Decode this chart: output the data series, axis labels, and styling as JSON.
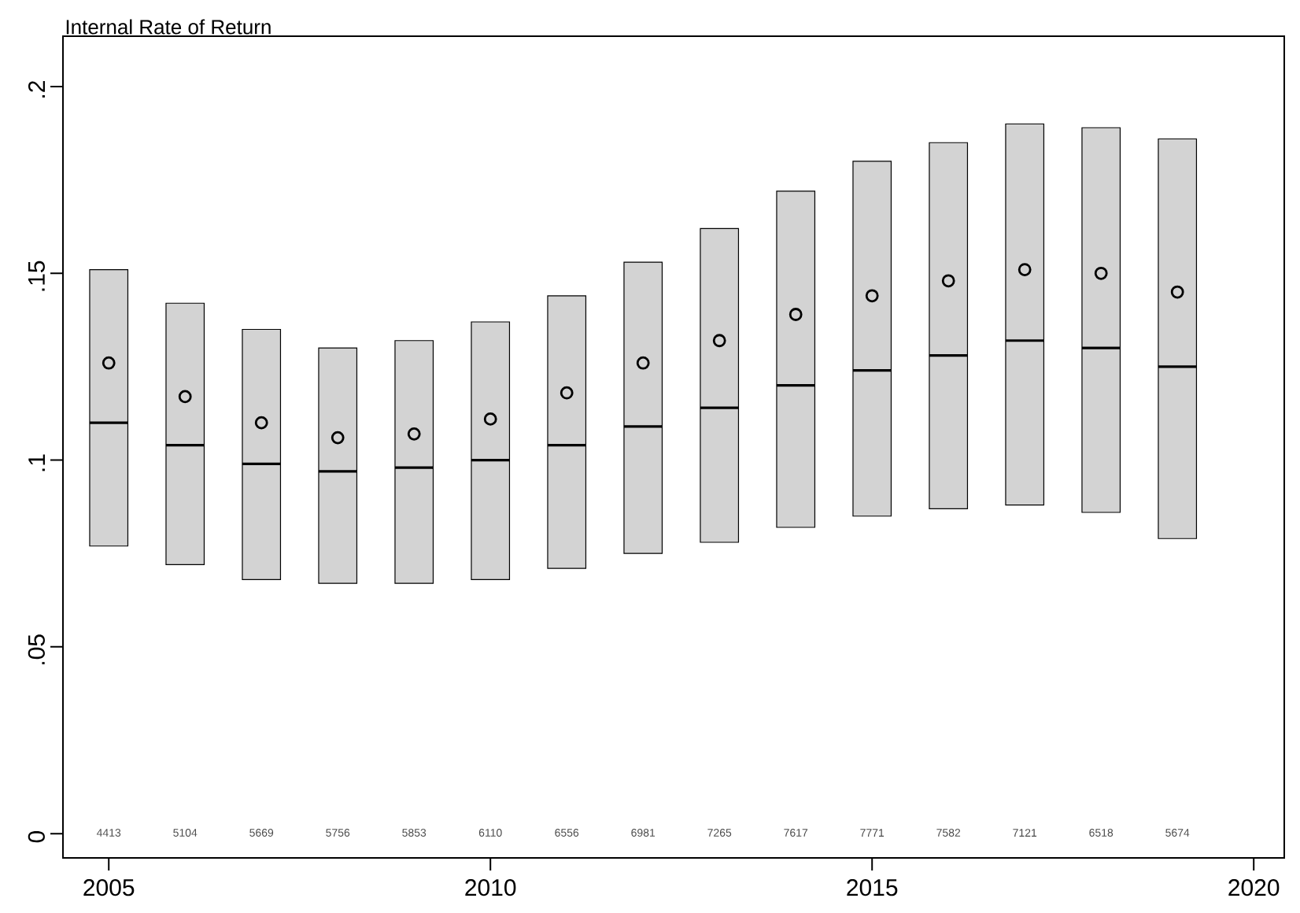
{
  "chart_data": {
    "type": "box",
    "title": "Internal Rate of Return",
    "x": [
      2005,
      2006,
      2007,
      2008,
      2009,
      2010,
      2011,
      2012,
      2013,
      2014,
      2015,
      2016,
      2017,
      2018,
      2019
    ],
    "boxes": [
      {
        "low": 0.077,
        "q1": 0.077,
        "median": 0.11,
        "q3": 0.151,
        "high": 0.151,
        "mean": 0.126
      },
      {
        "low": 0.072,
        "q1": 0.072,
        "median": 0.104,
        "q3": 0.142,
        "high": 0.142,
        "mean": 0.117
      },
      {
        "low": 0.068,
        "q1": 0.068,
        "median": 0.099,
        "q3": 0.135,
        "high": 0.135,
        "mean": 0.11
      },
      {
        "low": 0.067,
        "q1": 0.067,
        "median": 0.097,
        "q3": 0.13,
        "high": 0.13,
        "mean": 0.106
      },
      {
        "low": 0.067,
        "q1": 0.067,
        "median": 0.098,
        "q3": 0.132,
        "high": 0.132,
        "mean": 0.107
      },
      {
        "low": 0.068,
        "q1": 0.068,
        "median": 0.1,
        "q3": 0.137,
        "high": 0.137,
        "mean": 0.111
      },
      {
        "low": 0.071,
        "q1": 0.071,
        "median": 0.104,
        "q3": 0.144,
        "high": 0.144,
        "mean": 0.118
      },
      {
        "low": 0.075,
        "q1": 0.075,
        "median": 0.109,
        "q3": 0.153,
        "high": 0.153,
        "mean": 0.126
      },
      {
        "low": 0.078,
        "q1": 0.078,
        "median": 0.114,
        "q3": 0.162,
        "high": 0.162,
        "mean": 0.132
      },
      {
        "low": 0.082,
        "q1": 0.082,
        "median": 0.12,
        "q3": 0.172,
        "high": 0.172,
        "mean": 0.139
      },
      {
        "low": 0.085,
        "q1": 0.085,
        "median": 0.124,
        "q3": 0.18,
        "high": 0.18,
        "mean": 0.144
      },
      {
        "low": 0.087,
        "q1": 0.087,
        "median": 0.128,
        "q3": 0.185,
        "high": 0.185,
        "mean": 0.148
      },
      {
        "low": 0.088,
        "q1": 0.088,
        "median": 0.132,
        "q3": 0.19,
        "high": 0.19,
        "mean": 0.151
      },
      {
        "low": 0.086,
        "q1": 0.086,
        "median": 0.13,
        "q3": 0.189,
        "high": 0.189,
        "mean": 0.15
      },
      {
        "low": 0.079,
        "q1": 0.079,
        "median": 0.125,
        "q3": 0.186,
        "high": 0.186,
        "mean": 0.145
      }
    ],
    "color": "#d3d3d3",
    "xlim": [
      2004.4,
      2020.4
    ],
    "xticks": [
      2005,
      2010,
      2015,
      2020
    ],
    "ylim": [
      -0.0065,
      0.2135
    ],
    "yticks": [
      0,
      {
        "value": 0.05,
        "label": ".05"
      },
      {
        "value": 0.1,
        "label": ".1"
      },
      {
        "value": 0.15,
        "label": ".15"
      },
      {
        "value": 0.2,
        "label": ".2"
      }
    ],
    "grid": false,
    "marker": "circle",
    "annotations": [
      "4413",
      "5104",
      "5669",
      "5756",
      "5853",
      "6110",
      "6556",
      "6981",
      "7265",
      "7617",
      "7771",
      "7582",
      "7121",
      "6518",
      "5674"
    ]
  }
}
